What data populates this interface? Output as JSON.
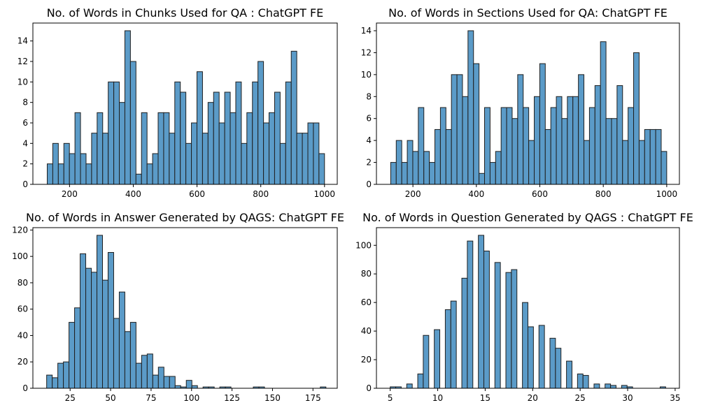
{
  "chart_data": [
    {
      "type": "bar",
      "title": "No. of Words in Chunks Used for QA : ChatGPT FE",
      "xlabel": "",
      "ylabel": "",
      "xlim": [
        85,
        1040
      ],
      "ylim": [
        0,
        15.75
      ],
      "xticks": [
        200,
        400,
        600,
        800,
        1000
      ],
      "yticks": [
        0,
        2,
        4,
        6,
        8,
        10,
        12,
        14
      ],
      "bin_range": [
        130,
        1000
      ],
      "values": [
        2,
        4,
        2,
        4,
        3,
        7,
        3,
        2,
        5,
        7,
        5,
        10,
        10,
        8,
        15,
        12,
        1,
        7,
        2,
        3,
        7,
        7,
        5,
        10,
        9,
        4,
        6,
        11,
        5,
        8,
        9,
        6,
        9,
        7,
        10,
        4,
        7,
        10,
        12,
        6,
        7,
        9,
        4,
        10,
        13,
        5,
        5,
        6,
        6,
        3
      ]
    },
    {
      "type": "bar",
      "title": "No. of Words in Sections Used for QA: ChatGPT FE",
      "xlabel": "",
      "ylabel": "",
      "xlim": [
        85,
        1040
      ],
      "ylim": [
        0,
        14.7
      ],
      "xticks": [
        200,
        400,
        600,
        800,
        1000
      ],
      "yticks": [
        0,
        2,
        4,
        6,
        8,
        10,
        12,
        14
      ],
      "bin_range": [
        130,
        1000
      ],
      "values": [
        2,
        4,
        2,
        4,
        3,
        7,
        3,
        2,
        5,
        7,
        5,
        10,
        10,
        8,
        14,
        11,
        1,
        7,
        2,
        3,
        7,
        7,
        6,
        10,
        7,
        4,
        8,
        11,
        5,
        7,
        8,
        6,
        8,
        8,
        10,
        4,
        7,
        9,
        13,
        6,
        6,
        9,
        4,
        7,
        12,
        4,
        5,
        5,
        5,
        3
      ]
    },
    {
      "type": "bar",
      "title": "No. of Words in Answer Generated by QAGS: ChatGPT FE",
      "xlabel": "",
      "ylabel": "",
      "xlim": [
        2,
        190
      ],
      "ylim": [
        0,
        121.8
      ],
      "xticks": [
        25,
        50,
        75,
        100,
        125,
        150,
        175
      ],
      "yticks": [
        0,
        20,
        40,
        60,
        80,
        100,
        120
      ],
      "bin_range": [
        10.5,
        183
      ],
      "values": [
        10,
        8,
        19,
        20,
        50,
        61,
        102,
        91,
        88,
        116,
        82,
        103,
        53,
        73,
        43,
        50,
        19,
        25,
        26,
        10,
        16,
        9,
        9,
        2,
        1,
        6,
        2,
        0,
        1,
        1,
        0,
        1,
        1,
        0,
        0,
        0,
        0,
        1,
        1,
        0,
        0,
        0,
        0,
        0,
        0,
        0,
        0,
        0,
        0,
        1
      ]
    },
    {
      "type": "bar",
      "title": "No. of Words in Question Generated by QAGS : ChatGPT FE",
      "xlabel": "",
      "ylabel": "",
      "xlim": [
        3.55,
        35.45
      ],
      "ylim": [
        0,
        112.35
      ],
      "xticks": [
        5,
        10,
        15,
        20,
        25,
        30,
        35
      ],
      "yticks": [
        0,
        20,
        40,
        60,
        80,
        100
      ],
      "bin_range": [
        5,
        34
      ],
      "values": [
        1,
        1,
        0,
        3,
        0,
        10,
        37,
        0,
        41,
        0,
        55,
        61,
        0,
        77,
        103,
        0,
        107,
        96,
        0,
        88,
        0,
        81,
        83,
        0,
        60,
        43,
        0,
        44,
        0,
        35,
        28,
        0,
        19,
        0,
        10,
        9,
        0,
        3,
        0,
        3,
        2,
        0,
        2,
        1,
        0,
        0,
        0,
        0,
        0,
        1
      ]
    }
  ]
}
